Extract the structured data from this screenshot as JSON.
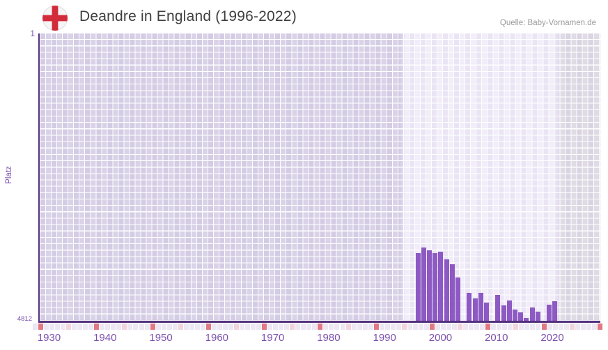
{
  "header": {
    "title": "Deandre in England (1996-2022)",
    "source": "Quelle: Baby-Vornamen.de",
    "flag_icon": "england-flag-icon"
  },
  "axes": {
    "y_label": "Platz",
    "y_top_tick": "1",
    "y_bottom_tick": "4812",
    "x_ticks": [
      "1930",
      "1940",
      "1950",
      "1960",
      "1970",
      "1980",
      "1990",
      "2000",
      "2010",
      "2020"
    ]
  },
  "chart_data": {
    "type": "bar",
    "title": "Deandre in England (1996-2022)",
    "xlabel": "",
    "ylabel": "Platz",
    "y_axis": {
      "top_value": 1,
      "bottom_value": 4812,
      "inverted": true,
      "meaning": "rank, 1 = best"
    },
    "x_axis": {
      "first_grid_year": 1929,
      "last_grid_year": 2030,
      "decade_labels": [
        1930,
        1940,
        1950,
        1960,
        1970,
        1980,
        1990,
        2000,
        2010,
        2020
      ]
    },
    "highlight_window": {
      "from_year": 1996,
      "to_year": 2022
    },
    "series": [
      {
        "name": "Platz von Deandre",
        "points": [
          {
            "year": 1996,
            "rank": 3679
          },
          {
            "year": 1997,
            "rank": 3586
          },
          {
            "year": 1998,
            "rank": 3632
          },
          {
            "year": 1999,
            "rank": 3679
          },
          {
            "year": 2000,
            "rank": 3656
          },
          {
            "year": 2001,
            "rank": 3784
          },
          {
            "year": 2002,
            "rank": 3866
          },
          {
            "year": 2003,
            "rank": 4088
          },
          {
            "year": 2005,
            "rank": 4344
          },
          {
            "year": 2006,
            "rank": 4438
          },
          {
            "year": 2007,
            "rank": 4344
          },
          {
            "year": 2008,
            "rank": 4508
          },
          {
            "year": 2010,
            "rank": 4379
          },
          {
            "year": 2011,
            "rank": 4555
          },
          {
            "year": 2012,
            "rank": 4473
          },
          {
            "year": 2013,
            "rank": 4625
          },
          {
            "year": 2014,
            "rank": 4671
          },
          {
            "year": 2015,
            "rank": 4765
          },
          {
            "year": 2016,
            "rank": 4590
          },
          {
            "year": 2017,
            "rank": 4660
          },
          {
            "year": 2019,
            "rank": 4543
          },
          {
            "year": 2020,
            "rank": 4485
          }
        ]
      }
    ],
    "years_without_ranking": [
      2004,
      2009,
      2018,
      2021,
      2022
    ],
    "legend": "none",
    "grid": true
  },
  "colors": {
    "bar": "#8d5ac3",
    "axis": "#53307f",
    "tick_decade": "#e07984",
    "tick_half_decade": "#f2d4da",
    "tick_default": "#ece7f3",
    "label_purple": "#7a50ae",
    "flag_red": "#d22c3b",
    "region_old": "#dad3e8",
    "region_active": "#f1edf9",
    "region_recent": "#e0dce6"
  }
}
